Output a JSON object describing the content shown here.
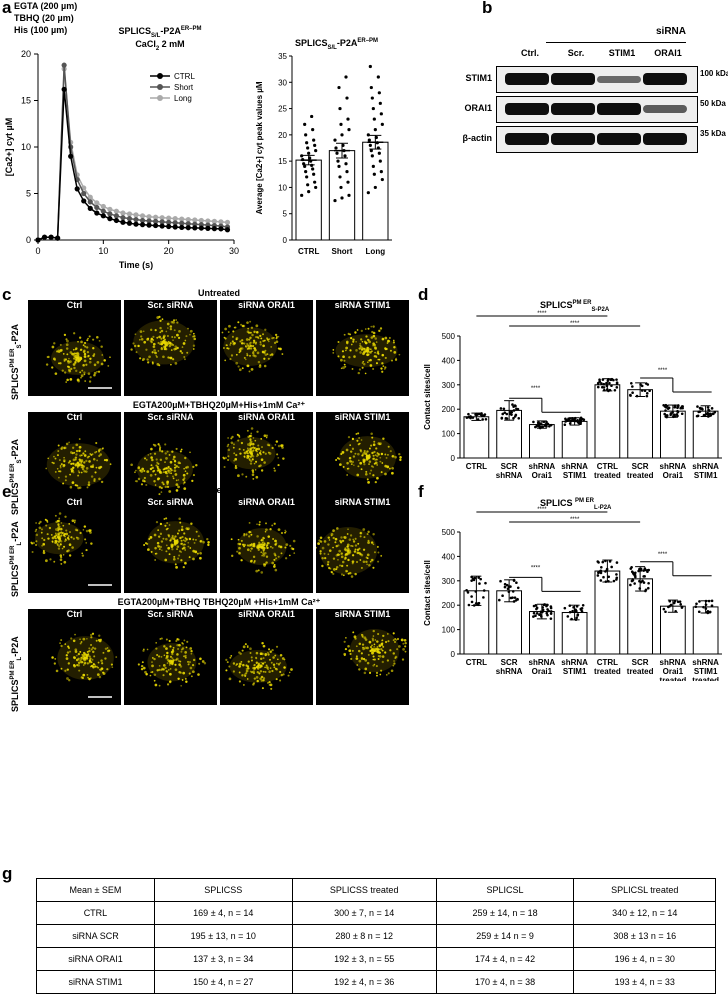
{
  "panels": {
    "a": "a",
    "b": "b",
    "c": "c",
    "d": "d",
    "e": "e",
    "f": "f",
    "g": "g"
  },
  "panel_a": {
    "protocol": [
      "EGTA (200 µm)",
      "TBHQ (20 µm)",
      "His (100 µm)"
    ],
    "construct": "SPLICS",
    "construct_sub": "S/L",
    "construct_rest": "-P2A",
    "construct_sup": "ER–PM",
    "cacl2": "CaCl",
    "cacl2_sub": "2",
    "cacl2_rest": " 2 mM",
    "legend": [
      "CTRL",
      "Short",
      "Long"
    ],
    "colors": {
      "CTRL": "#000000",
      "Short": "#555555",
      "Long": "#aaaaaa"
    }
  },
  "chart_data": [
    {
      "type": "line",
      "xlabel": "Time (s)",
      "ylabel": "[Ca2+] cyt µM",
      "xlim": [
        0,
        30
      ],
      "ylim": [
        0,
        20
      ],
      "xticks": [
        0,
        10,
        20,
        30
      ],
      "yticks": [
        0,
        5,
        10,
        15,
        20
      ],
      "x": [
        0,
        1,
        2,
        3,
        4,
        5,
        6,
        7,
        8,
        9,
        10,
        11,
        12,
        13,
        14,
        15,
        16,
        17,
        18,
        19,
        20,
        21,
        22,
        23,
        24,
        25,
        26,
        27,
        28,
        29
      ],
      "series": [
        {
          "name": "CTRL",
          "values": [
            0,
            0.3,
            0.3,
            0.2,
            16.2,
            9,
            5.5,
            4.2,
            3.4,
            2.9,
            2.6,
            2.3,
            2.1,
            1.9,
            1.8,
            1.7,
            1.65,
            1.6,
            1.55,
            1.5,
            1.45,
            1.4,
            1.35,
            1.32,
            1.3,
            1.28,
            1.25,
            1.22,
            1.2,
            1.1
          ]
        },
        {
          "name": "Short",
          "values": [
            0,
            0.3,
            0.3,
            0.2,
            18.8,
            10,
            6.5,
            5,
            4.1,
            3.5,
            3.1,
            2.8,
            2.6,
            2.4,
            2.3,
            2.2,
            2.1,
            2.05,
            2.0,
            1.95,
            1.9,
            1.85,
            1.8,
            1.75,
            1.7,
            1.65,
            1.6,
            1.55,
            1.5,
            1.4
          ]
        },
        {
          "name": "Long",
          "values": [
            0,
            0.3,
            0.3,
            0.2,
            18.4,
            10.5,
            7,
            5.6,
            4.6,
            4,
            3.6,
            3.3,
            3.1,
            2.9,
            2.8,
            2.7,
            2.6,
            2.5,
            2.45,
            2.4,
            2.35,
            2.3,
            2.25,
            2.2,
            2.15,
            2.1,
            2.05,
            2.0,
            1.95,
            1.9
          ]
        }
      ]
    },
    {
      "type": "bar",
      "title": "SPLICSS/L-P2AER–PM",
      "ylabel": "Average [Ca2+] cyt peak values µM",
      "categories": [
        "CTRL",
        "Short",
        "Long"
      ],
      "values": [
        15.2,
        17.0,
        18.6
      ],
      "sem": [
        0.9,
        1.4,
        1.3
      ],
      "ylim": [
        0,
        35
      ],
      "yticks": [
        0,
        5,
        10,
        15,
        20,
        25,
        30,
        35
      ],
      "points": [
        [
          8.5,
          9.2,
          10,
          10.5,
          11,
          12,
          12.5,
          13,
          13.5,
          14,
          14.2,
          14.5,
          15,
          15.3,
          15.6,
          16,
          16.5,
          17,
          17.5,
          18,
          18.5,
          19,
          20,
          21,
          22,
          23.5
        ],
        [
          7.5,
          8,
          8.5,
          10,
          11,
          12,
          13,
          14,
          14.5,
          15,
          16,
          16.5,
          17,
          17.5,
          18,
          19,
          20,
          21,
          22,
          23,
          25,
          27,
          29,
          31
        ],
        [
          9,
          10,
          11.5,
          12.5,
          13,
          14,
          15,
          16,
          16.5,
          17,
          17.5,
          18,
          18.5,
          19,
          19.5,
          20,
          21,
          22,
          23,
          24,
          25,
          26,
          27,
          28,
          29,
          31,
          33
        ]
      ]
    },
    {
      "type": "bar",
      "title": "SPLICSPM ERS-P2A",
      "ylabel": "Contact sites/cell",
      "categories": [
        "CTRL",
        "SCR shRNA",
        "shRNA Orai1",
        "shRNA STIM1",
        "CTRL treated",
        "SCR treated",
        "shRNA Orai1 treated",
        "shRNA STIM1 treated"
      ],
      "values": [
        169,
        195,
        137,
        150,
        300,
        280,
        192,
        192
      ],
      "sd": [
        15,
        40,
        15,
        15,
        25,
        28,
        25,
        22
      ],
      "ylim": [
        0,
        500
      ],
      "yticks": [
        0,
        100,
        200,
        300,
        400,
        500
      ],
      "significance": "****"
    },
    {
      "type": "bar",
      "title": "SPLICS PM ERL-P2A",
      "ylabel": "Contact sites/cell",
      "categories": [
        "CTRL",
        "SCR shRNA",
        "shRNA Orai1",
        "shRNA STIM1",
        "CTRL treated",
        "SCR treated",
        "shRNA Orai1 treated",
        "shRNA STIM1 treated"
      ],
      "values": [
        259,
        259,
        174,
        170,
        340,
        308,
        196,
        193
      ],
      "sd": [
        60,
        45,
        30,
        30,
        45,
        50,
        25,
        25
      ],
      "ylim": [
        0,
        500
      ],
      "yticks": [
        0,
        100,
        200,
        300,
        400,
        500
      ],
      "significance": "****"
    }
  ],
  "panel_b": {
    "sirna": "siRNA",
    "lanes": [
      "Ctrl.",
      "Scr.",
      "STIM1",
      "ORAI1"
    ],
    "rows": [
      {
        "name": "STIM1",
        "kda": "100 kDa",
        "intensity": [
          1,
          1,
          0.35,
          1
        ]
      },
      {
        "name": "ORAI1",
        "kda": "50 kDa",
        "intensity": [
          1,
          1,
          1,
          0.45
        ]
      },
      {
        "name": "β-actin",
        "kda": "35 kDa",
        "intensity": [
          1,
          1,
          1,
          1
        ]
      }
    ]
  },
  "panel_c": {
    "title_untreated": "Untreated",
    "title_treated": "EGTA200µM+TBHQ20µM+His+1mM Ca²⁺",
    "cols": [
      "Ctrl",
      "Scr. siRNA",
      "siRNA ORAI1",
      "siRNA STIM1"
    ],
    "row_label": "SPLICS",
    "row_sup": "PM ER",
    "row_sub": "S",
    "row_rest": "-P2A"
  },
  "panel_e": {
    "title_untreated": "Untreated",
    "title_treated": "EGTA200µM+TBHQ TBHQ20µM +His+1mM Ca²⁺",
    "cols": [
      "Ctrl",
      "Scr. siRNA",
      "siRNA ORAI1",
      "siRNA STIM1"
    ],
    "row_label": "SPLICS",
    "row_sup": "PM ER",
    "row_sub": "L",
    "row_rest": "-P2A"
  },
  "table_g": {
    "header": [
      "Mean ± SEM",
      "SPLICSS",
      "SPLICSS treated",
      "SPLICSL",
      "SPLICSL treated"
    ],
    "rows": [
      [
        "CTRL",
        "169 ± 4, n = 14",
        "300 ± 7, n = 14",
        "259 ± 14, n = 18",
        "340 ± 12, n = 14"
      ],
      [
        "siRNA SCR",
        "195 ± 13, n = 10",
        "280 ± 8 n = 12",
        "259 ± 14 n = 9",
        "308 ± 13 n = 16"
      ],
      [
        "siRNA ORAI1",
        "137 ± 3, n = 34",
        "192 ± 3, n = 55",
        "174 ± 4, n = 42",
        "196 ± 4, n = 30"
      ],
      [
        "siRNA STIM1",
        "150 ± 4, n = 27",
        "192 ± 4, n = 36",
        "170 ± 4, n = 38",
        "193 ± 4, n = 33"
      ]
    ]
  }
}
